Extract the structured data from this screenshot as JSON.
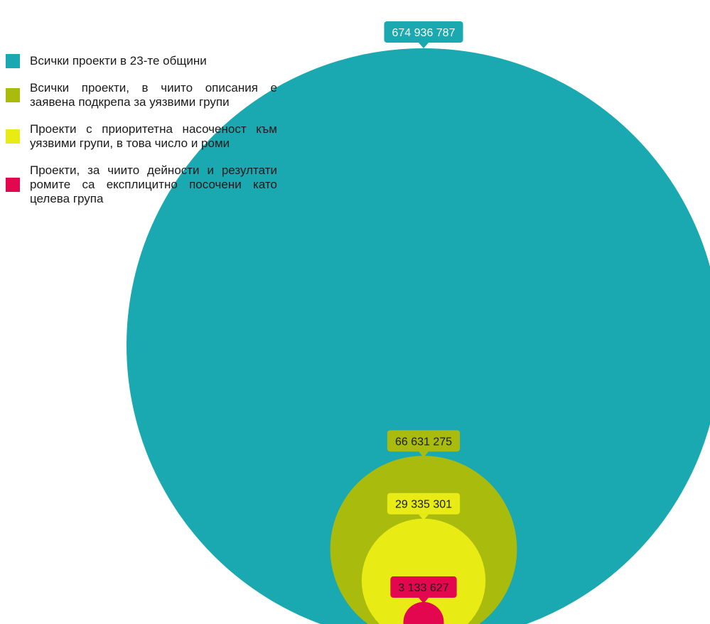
{
  "chart_data": {
    "type": "nested-bubble",
    "series": [
      {
        "name": "Всички проекти в 23-те общини",
        "value": 674936787,
        "label": "674 936 787",
        "color": "#1aa9b0",
        "label_color": "#ffffff"
      },
      {
        "name": "Всички проекти, в чиито описания е заявена подкрепа за уязвими групи",
        "value": 66631275,
        "label": "66 631 275",
        "color": "#a9bc0e",
        "label_color": "#1a1a1a"
      },
      {
        "name": "Проекти с приоритетна насоченост към уязвими групи, в това число и роми",
        "value": 29335301,
        "label": "29 335 301",
        "color": "#e8ec14",
        "label_color": "#1a1a1a"
      },
      {
        "name": "Проекти, за чиито дейности и резултати ромите са експлицитно посочени като целева група",
        "value": 3133627,
        "label": "3 133 627",
        "color": "#e3074f",
        "label_color": "#1a1a1a"
      }
    ],
    "legend_placement": "top-left"
  }
}
